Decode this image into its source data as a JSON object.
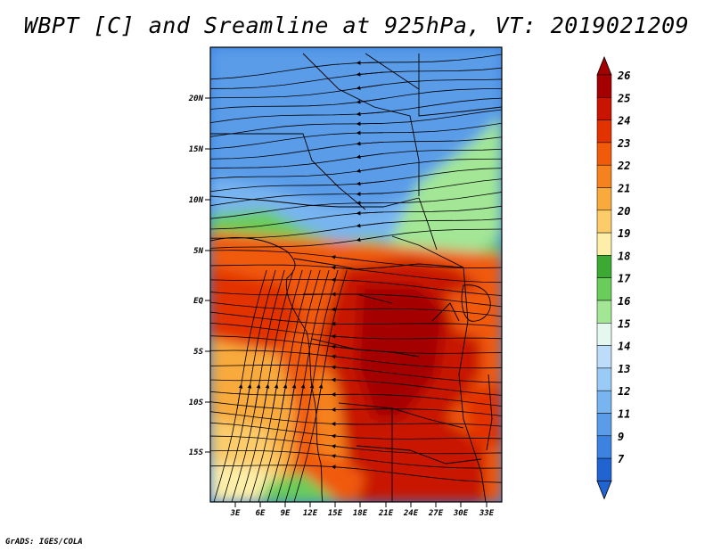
{
  "title": "WBPT [C] and Sreamline at 925hPa, VT: 2019021209",
  "credit": "GrADS: IGES/COLA",
  "map": {
    "lat_ticks": [
      "20N",
      "15N",
      "10N",
      "5N",
      "EQ",
      "5S",
      "10S",
      "15S"
    ],
    "lon_ticks": [
      "3E",
      "6E",
      "9E",
      "12E",
      "15E",
      "18E",
      "21E",
      "24E",
      "27E",
      "30E",
      "33E"
    ]
  },
  "colorbar": {
    "labels": [
      "26",
      "25",
      "24",
      "23",
      "22",
      "21",
      "20",
      "19",
      "18",
      "17",
      "16",
      "15",
      "14",
      "13",
      "12",
      "11",
      "9",
      "7"
    ],
    "colors": [
      "#a50000",
      "#c81400",
      "#e23200",
      "#f05a0a",
      "#f5821e",
      "#f8aa3c",
      "#fccc6a",
      "#fdeea8",
      "#3caa32",
      "#6acc5a",
      "#a2e696",
      "#e4f8f0",
      "#bcdcfa",
      "#9acaf6",
      "#78b4f0",
      "#5a9ce8",
      "#3c82e0",
      "#2064d2"
    ]
  }
}
